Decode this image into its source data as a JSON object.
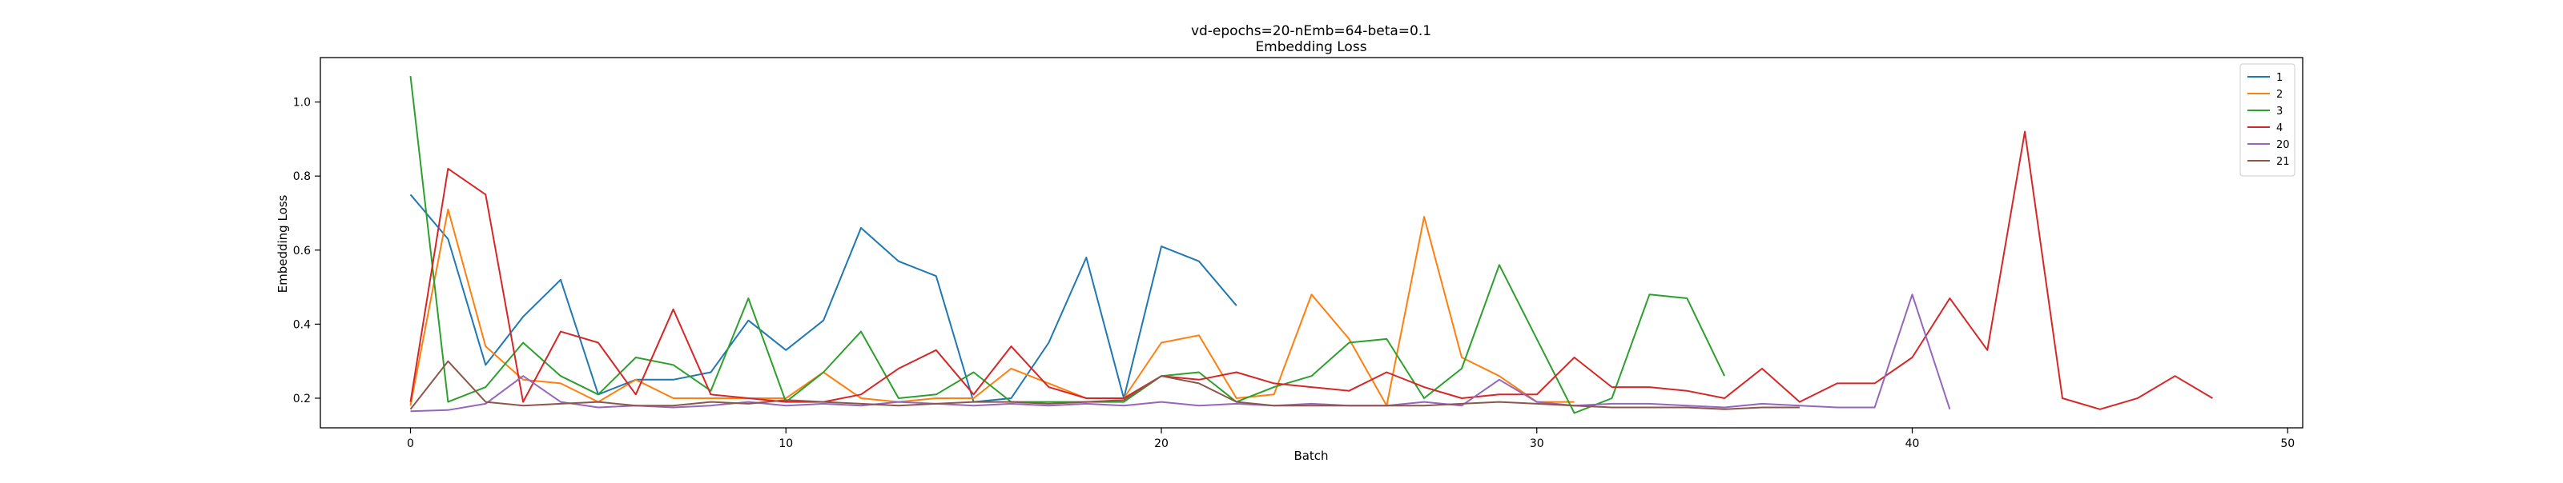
{
  "chart_data": {
    "type": "line",
    "title": "vd-epochs=20-nEmb=64-beta=0.1",
    "subtitle": "Embedding Loss",
    "xlabel": "Batch",
    "ylabel": "Embedding Loss",
    "xlim": [
      -2.4,
      50.4
    ],
    "ylim": [
      0.12,
      1.12
    ],
    "xticks": [
      0,
      10,
      20,
      30,
      40,
      50
    ],
    "yticks": [
      0.2,
      0.4,
      0.6,
      0.8,
      1.0
    ],
    "xtick_labels": [
      "0",
      "10",
      "20",
      "30",
      "40",
      "50"
    ],
    "ytick_labels": [
      "0.2",
      "0.4",
      "0.6",
      "0.8",
      "1.0"
    ],
    "grid": false,
    "legend_position": "top-right",
    "series": [
      {
        "name": "1",
        "color": "#1f77b4",
        "x": [
          0,
          1,
          2,
          3,
          4,
          5,
          6,
          7,
          8,
          9,
          10,
          11,
          12,
          13,
          14,
          15,
          16,
          17,
          18,
          19,
          20,
          21,
          22
        ],
        "y": [
          0.75,
          0.63,
          0.29,
          0.42,
          0.52,
          0.21,
          0.25,
          0.25,
          0.27,
          0.41,
          0.33,
          0.41,
          0.66,
          0.57,
          0.53,
          0.19,
          0.2,
          0.35,
          0.58,
          0.2,
          0.61,
          0.57,
          0.45
        ]
      },
      {
        "name": "2",
        "color": "#ff7f0e",
        "x": [
          0,
          1,
          2,
          3,
          4,
          5,
          6,
          7,
          8,
          9,
          10,
          11,
          12,
          13,
          14,
          15,
          16,
          17,
          18,
          19,
          20,
          21,
          22,
          23,
          24,
          25,
          26,
          27,
          28,
          29,
          30,
          31
        ],
        "y": [
          0.18,
          0.71,
          0.34,
          0.25,
          0.24,
          0.19,
          0.25,
          0.2,
          0.2,
          0.2,
          0.2,
          0.27,
          0.2,
          0.19,
          0.2,
          0.2,
          0.28,
          0.24,
          0.2,
          0.2,
          0.35,
          0.37,
          0.2,
          0.21,
          0.48,
          0.36,
          0.18,
          0.69,
          0.31,
          0.26,
          0.19,
          0.19
        ]
      },
      {
        "name": "3",
        "color": "#2ca02c",
        "x": [
          0,
          1,
          2,
          3,
          4,
          5,
          6,
          7,
          8,
          9,
          10,
          11,
          12,
          13,
          14,
          15,
          16,
          17,
          18,
          19,
          20,
          21,
          22,
          23,
          24,
          25,
          26,
          27,
          28,
          29,
          30,
          31,
          32,
          33,
          34,
          35
        ],
        "y": [
          1.07,
          0.19,
          0.23,
          0.35,
          0.26,
          0.21,
          0.31,
          0.29,
          0.22,
          0.47,
          0.19,
          0.27,
          0.38,
          0.2,
          0.21,
          0.27,
          0.19,
          0.19,
          0.19,
          0.19,
          0.26,
          0.27,
          0.19,
          0.23,
          0.26,
          0.35,
          0.36,
          0.2,
          0.28,
          0.56,
          0.36,
          0.16,
          0.2,
          0.48,
          0.47,
          0.26
        ]
      },
      {
        "name": "4",
        "color": "#d62728",
        "x": [
          0,
          1,
          2,
          3,
          4,
          5,
          6,
          7,
          8,
          9,
          10,
          11,
          12,
          13,
          14,
          15,
          16,
          17,
          18,
          19,
          20,
          21,
          22,
          23,
          24,
          25,
          26,
          27,
          28,
          29,
          30,
          31,
          32,
          33,
          34,
          35,
          36,
          37,
          38,
          39,
          40,
          41,
          42,
          43,
          44,
          45,
          46,
          47,
          48
        ],
        "y": [
          0.19,
          0.82,
          0.75,
          0.19,
          0.38,
          0.35,
          0.21,
          0.44,
          0.21,
          0.2,
          0.19,
          0.19,
          0.21,
          0.28,
          0.33,
          0.21,
          0.34,
          0.23,
          0.2,
          0.2,
          0.26,
          0.25,
          0.27,
          0.24,
          0.23,
          0.22,
          0.27,
          0.23,
          0.2,
          0.21,
          0.21,
          0.31,
          0.23,
          0.23,
          0.22,
          0.2,
          0.28,
          0.19,
          0.24,
          0.24,
          0.31,
          0.47,
          0.33,
          0.92,
          0.2,
          0.17,
          0.2,
          0.26,
          0.2
        ]
      },
      {
        "name": "20",
        "color": "#9467bd",
        "x": [
          0,
          1,
          2,
          3,
          4,
          5,
          6,
          7,
          8,
          9,
          10,
          11,
          12,
          13,
          14,
          15,
          16,
          17,
          18,
          19,
          20,
          21,
          22,
          23,
          24,
          25,
          26,
          27,
          28,
          29,
          30,
          31,
          32,
          33,
          34,
          35,
          36,
          37,
          38,
          39,
          40,
          41
        ],
        "y": [
          0.165,
          0.168,
          0.185,
          0.26,
          0.19,
          0.175,
          0.18,
          0.175,
          0.18,
          0.19,
          0.18,
          0.185,
          0.18,
          0.19,
          0.185,
          0.18,
          0.185,
          0.18,
          0.185,
          0.18,
          0.19,
          0.18,
          0.185,
          0.18,
          0.185,
          0.18,
          0.18,
          0.19,
          0.18,
          0.25,
          0.19,
          0.18,
          0.185,
          0.185,
          0.18,
          0.175,
          0.185,
          0.18,
          0.175,
          0.175,
          0.48,
          0.17
        ]
      },
      {
        "name": "21",
        "color": "#8c564b",
        "x": [
          0,
          1,
          2,
          3,
          4,
          5,
          6,
          7,
          8,
          9,
          10,
          11,
          12,
          13,
          14,
          15,
          16,
          17,
          18,
          19,
          20,
          21,
          22,
          23,
          24,
          25,
          26,
          27,
          28,
          29,
          30,
          31,
          32,
          33,
          34,
          35,
          36,
          37
        ],
        "y": [
          0.17,
          0.3,
          0.19,
          0.18,
          0.185,
          0.19,
          0.18,
          0.18,
          0.19,
          0.185,
          0.195,
          0.19,
          0.185,
          0.18,
          0.185,
          0.19,
          0.19,
          0.185,
          0.19,
          0.195,
          0.26,
          0.24,
          0.19,
          0.18,
          0.18,
          0.18,
          0.18,
          0.18,
          0.185,
          0.19,
          0.185,
          0.18,
          0.175,
          0.175,
          0.175,
          0.17,
          0.175,
          0.175
        ]
      }
    ]
  }
}
